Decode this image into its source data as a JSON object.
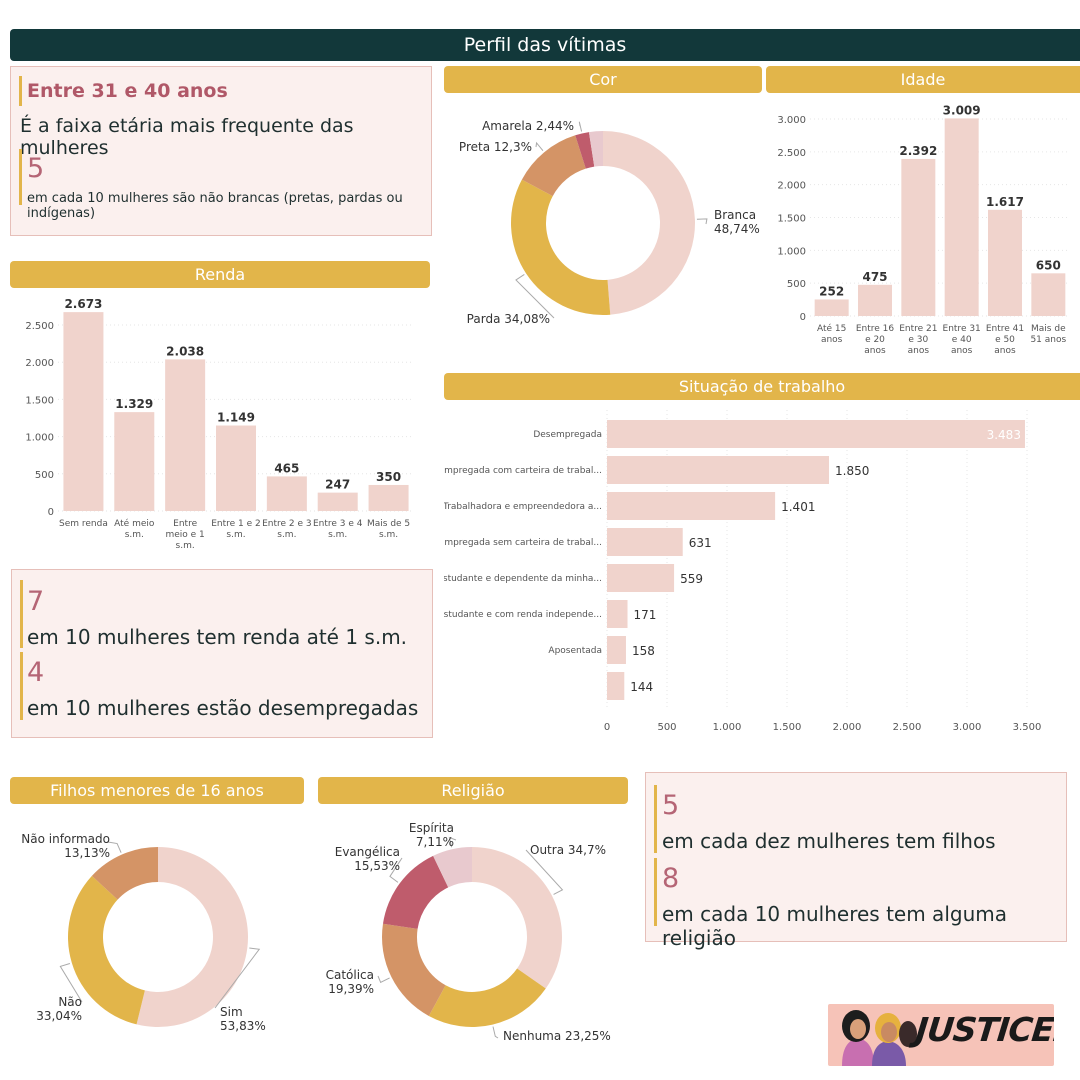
{
  "banner": {
    "title": "Perfil das vítimas"
  },
  "headers": {
    "cor": "Cor",
    "idade": "Idade",
    "renda": "Renda",
    "trabalho": "Situação de trabalho",
    "filhos": "Filhos menores de 16 anos",
    "religiao": "Religião"
  },
  "kpi_top": {
    "title": "Entre 31 e 40 anos",
    "subtitle": "É a faixa etária mais frequente das mulheres",
    "num": "5",
    "text": "em cada 10 mulheres são não brancas (pretas, pardas ou indígenas)"
  },
  "kpi_mid": {
    "num1": "7",
    "text1": "em 10 mulheres tem renda até 1 s.m.",
    "num2": "4",
    "text2": "em 10 mulheres estão desempregadas"
  },
  "kpi_bottom": {
    "num1": "5",
    "text1": "em cada dez mulheres tem filhos",
    "num2": "8",
    "text2": "em cada 10 mulheres tem alguma religião"
  },
  "logo": {
    "text": "JUSTICEIRAS"
  },
  "chart_data": [
    {
      "id": "cor",
      "type": "pie",
      "donut": true,
      "slices": [
        {
          "label": "Branca",
          "value": 48.74,
          "display": "48,74%",
          "color": "#f0d3cc"
        },
        {
          "label": "Parda",
          "value": 34.08,
          "display": "34,08%",
          "color": "#e2b54a"
        },
        {
          "label": "Preta",
          "value": 12.3,
          "display": "12,3%",
          "color": "#d49466"
        },
        {
          "label": "Amarela",
          "value": 2.44,
          "display": "2,44%",
          "color": "#bf5c6c"
        },
        {
          "label": "",
          "value": 2.44,
          "display": "",
          "color": "#e8c9ce"
        }
      ]
    },
    {
      "id": "idade",
      "type": "bar",
      "categories": [
        [
          "Até 15",
          "anos"
        ],
        [
          "Entre 16",
          "e 20",
          "anos"
        ],
        [
          "Entre 21",
          "e 30",
          "anos"
        ],
        [
          "Entre 31",
          "e 40",
          "anos"
        ],
        [
          "Entre 41",
          "e 50",
          "anos"
        ],
        [
          "Mais de",
          "51 anos"
        ]
      ],
      "values": [
        252,
        475,
        2392,
        3009,
        1617,
        650
      ],
      "labels": [
        "252",
        "475",
        "2.392",
        "3.009",
        "1.617",
        "650"
      ],
      "ylim": [
        0,
        3000
      ],
      "yticks": [
        0,
        500,
        1000,
        1500,
        2000,
        2500,
        3000
      ],
      "yticklabels": [
        "0",
        "500",
        "1.000",
        "1.500",
        "2.000",
        "2.500",
        "3.000"
      ],
      "color": "#f0d3cc"
    },
    {
      "id": "renda",
      "type": "bar",
      "categories": [
        [
          "Sem renda"
        ],
        [
          "Até meio",
          "s.m."
        ],
        [
          "Entre",
          "meio e 1",
          "s.m."
        ],
        [
          "Entre 1 e 2",
          "s.m."
        ],
        [
          "Entre 2 e 3",
          "s.m."
        ],
        [
          "Entre 3 e 4",
          "s.m."
        ],
        [
          "Mais de 5",
          "s.m."
        ]
      ],
      "values": [
        2673,
        1329,
        2038,
        1149,
        465,
        247,
        350
      ],
      "labels": [
        "2.673",
        "1.329",
        "2.038",
        "1.149",
        "465",
        "247",
        "350"
      ],
      "ylim": [
        0,
        2500
      ],
      "yticks": [
        0,
        500,
        1000,
        1500,
        2000,
        2500
      ],
      "yticklabels": [
        "0",
        "500",
        "1.000",
        "1.500",
        "2.000",
        "2.500"
      ],
      "color": "#f0d3cc"
    },
    {
      "id": "trabalho",
      "type": "bar",
      "orientation": "horizontal",
      "categories": [
        "Desempregada",
        "Empregada com carteira de trabal...",
        "Trabalhadora e empreendedora a...",
        "Empregada sem carteira de trabal...",
        "Estudante e dependente da minha...",
        "Estudante e com renda independe...",
        "Aposentada",
        ""
      ],
      "values": [
        3483,
        1850,
        1401,
        631,
        559,
        171,
        158,
        144
      ],
      "labels": [
        "3.483",
        "1.850",
        "1.401",
        "631",
        "559",
        "171",
        "158",
        "144"
      ],
      "xlim": [
        0,
        3500
      ],
      "xticks": [
        0,
        500,
        1000,
        1500,
        2000,
        2500,
        3000,
        3500
      ],
      "xticklabels": [
        "0",
        "500",
        "1.000",
        "1.500",
        "2.000",
        "2.500",
        "3.000",
        "3.500"
      ],
      "color": "#f0d3cc"
    },
    {
      "id": "filhos",
      "type": "pie",
      "donut": true,
      "slices": [
        {
          "label": "Sim",
          "value": 53.83,
          "display": "53,83%",
          "color": "#f0d3cc"
        },
        {
          "label": "Não",
          "value": 33.04,
          "display": "33,04%",
          "color": "#e2b54a"
        },
        {
          "label": "Não informado",
          "value": 13.13,
          "display": "13,13%",
          "color": "#d49466"
        }
      ]
    },
    {
      "id": "religiao",
      "type": "pie",
      "donut": true,
      "slices": [
        {
          "label": "Outra",
          "value": 34.7,
          "display": "34,7%",
          "color": "#f0d3cc"
        },
        {
          "label": "Nenhuma",
          "value": 23.25,
          "display": "23,25%",
          "color": "#e2b54a"
        },
        {
          "label": "Católica",
          "value": 19.39,
          "display": "19,39%",
          "color": "#d49466"
        },
        {
          "label": "Evangélica",
          "value": 15.53,
          "display": "15,53%",
          "color": "#bf5c6c"
        },
        {
          "label": "Espírita",
          "value": 7.11,
          "display": "7,11%",
          "color": "#e8c9ce"
        }
      ]
    }
  ]
}
